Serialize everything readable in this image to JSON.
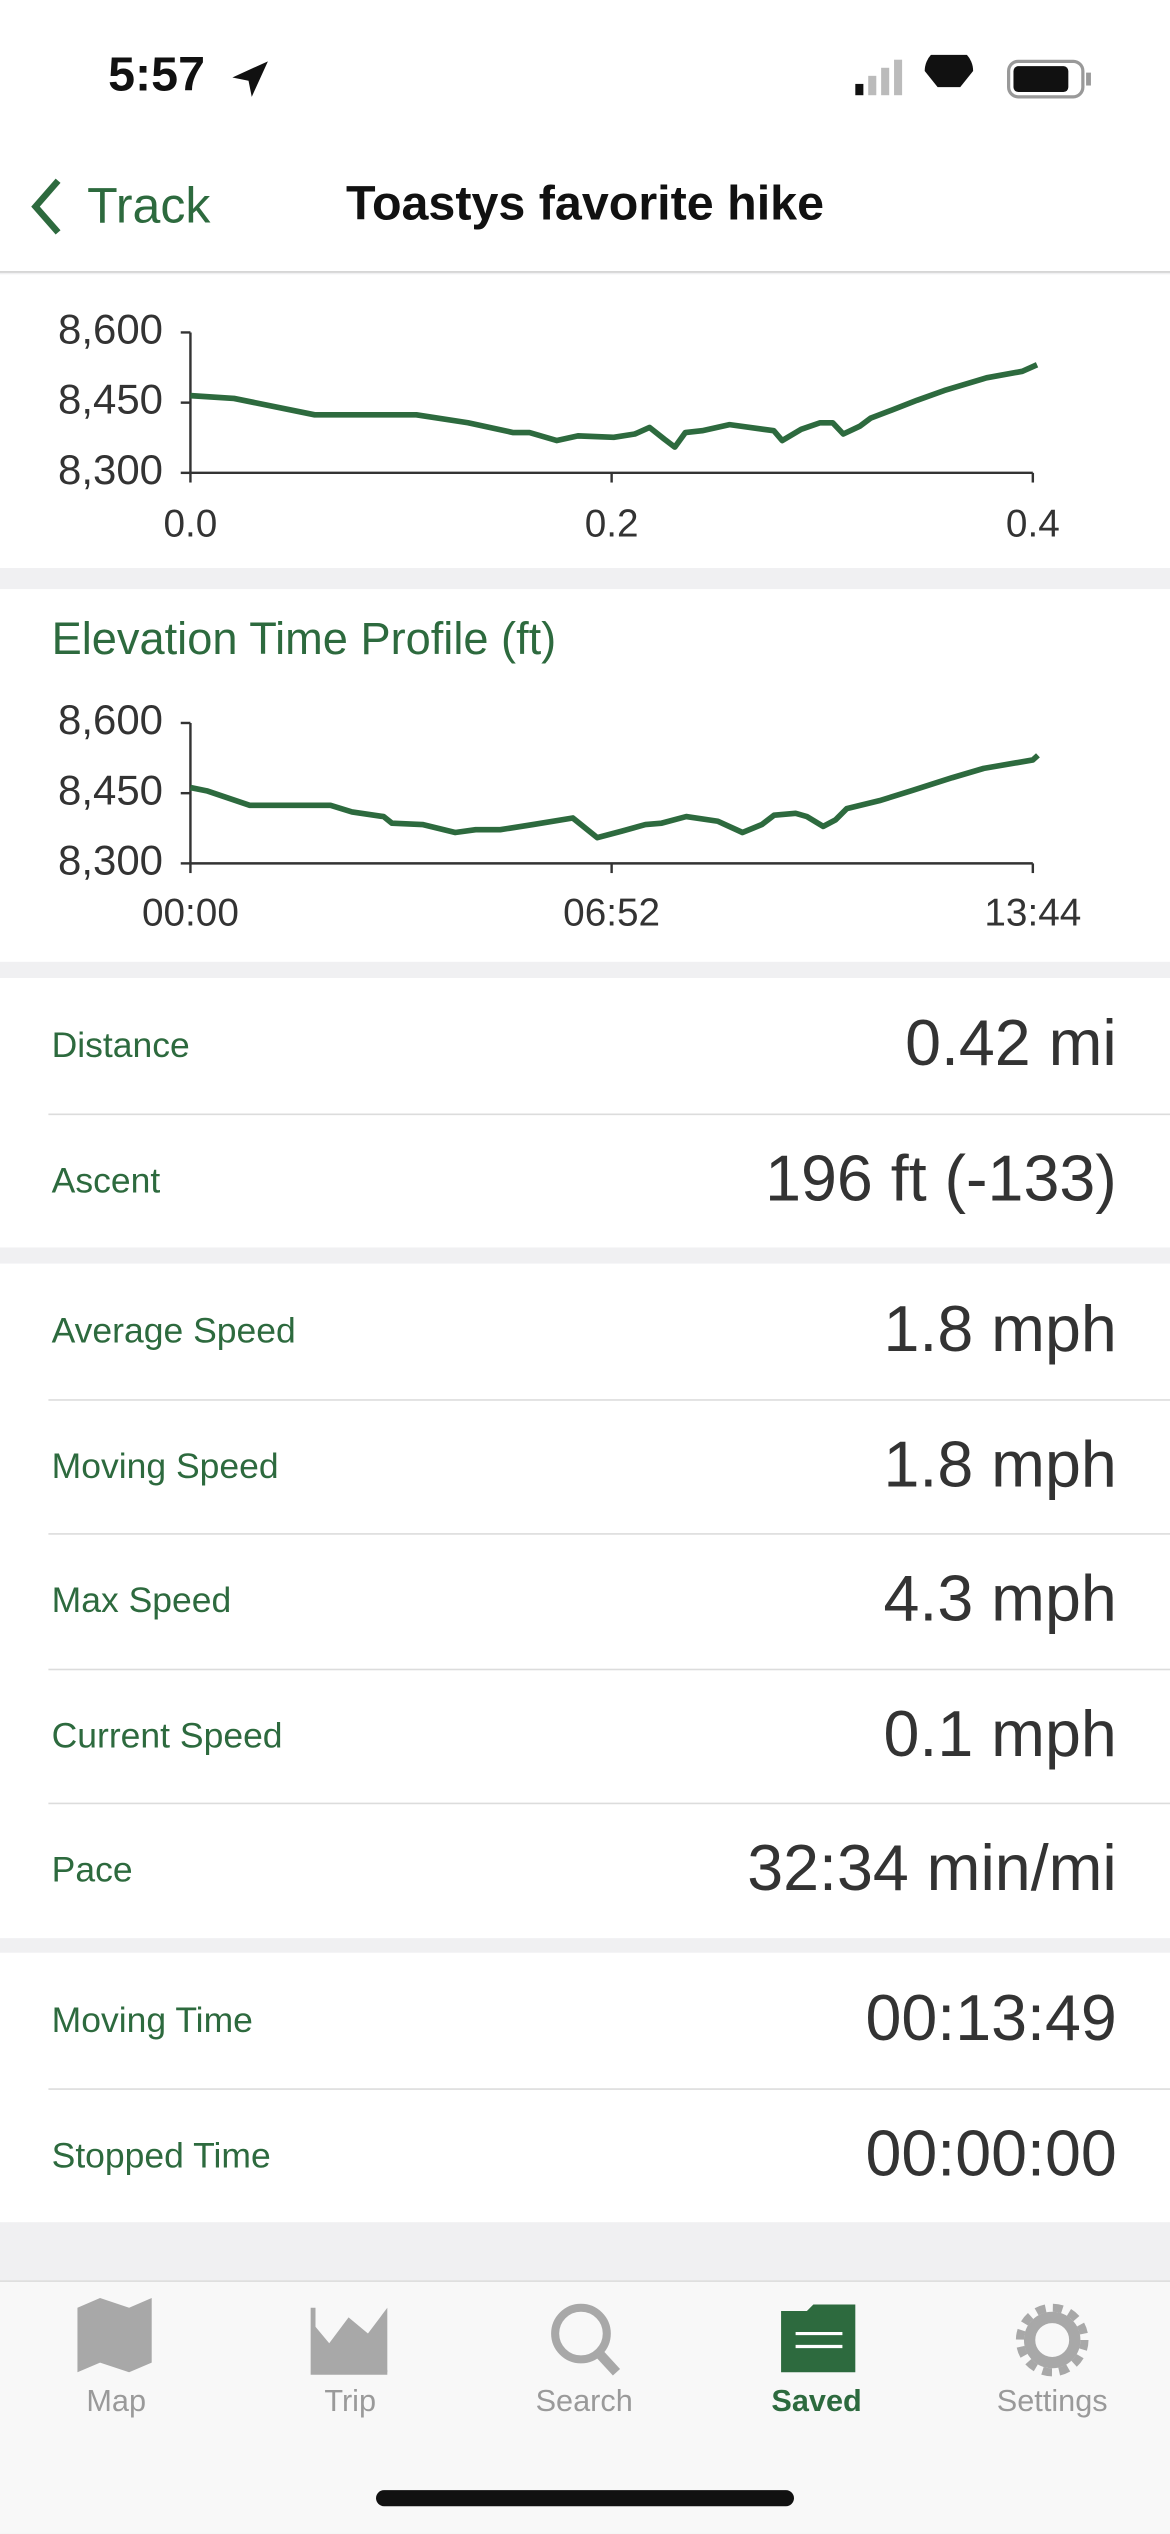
{
  "status_bar": {
    "time": "5:57"
  },
  "nav": {
    "back": "Track",
    "title": "Toastys favorite hike"
  },
  "chart_data": [
    {
      "type": "line",
      "color": "#2d6a3e",
      "x": [
        0,
        0.0207,
        0.059,
        0.1073,
        0.1318,
        0.1533,
        0.161,
        0.174,
        0.184,
        0.201,
        0.211,
        0.218,
        0.225,
        0.23,
        0.235,
        0.243,
        0.256,
        0.277,
        0.281,
        0.29,
        0.299,
        0.305,
        0.31,
        0.318,
        0.323,
        0.333,
        0.345,
        0.358,
        0.378,
        0.395,
        0.402
      ],
      "values": [
        8465,
        8459,
        8424,
        8424,
        8407,
        8386,
        8386,
        8369,
        8379,
        8376,
        8383,
        8397,
        8372,
        8355,
        8386,
        8390,
        8403,
        8390,
        8369,
        8393,
        8407,
        8407,
        8383,
        8400,
        8417,
        8434,
        8455,
        8476,
        8503,
        8517,
        8531
      ],
      "xlim": [
        0,
        0.4
      ],
      "xticks": [
        {
          "value": 0,
          "label": "0.0"
        },
        0.2,
        0.4
      ],
      "ylim": [
        8300,
        8600
      ],
      "yticks": [
        {
          "value": 8300,
          "label": "8,300"
        },
        {
          "value": 8450,
          "label": "8,450"
        },
        {
          "value": 8600,
          "label": "8,600"
        }
      ]
    },
    {
      "type": "line",
      "title": "Elevation Time Profile (ft)",
      "color": "#2d6a3e",
      "x": [
        0,
        16,
        58,
        137,
        158,
        189,
        197,
        227,
        259,
        279,
        303,
        335,
        374,
        398,
        422,
        445,
        461,
        485,
        516,
        540,
        559,
        571,
        592,
        603,
        619,
        631,
        642,
        674,
        705,
        745,
        776,
        824,
        829
      ],
      "values": [
        8462,
        8455,
        8424,
        8424,
        8410,
        8400,
        8386,
        8383,
        8366,
        8372,
        8372,
        8383,
        8397,
        8355,
        8369,
        8383,
        8386,
        8400,
        8390,
        8366,
        8383,
        8403,
        8407,
        8400,
        8379,
        8393,
        8417,
        8434,
        8455,
        8483,
        8503,
        8521,
        8531
      ],
      "xlim": [
        0,
        824
      ],
      "xticks": [
        {
          "value": 0,
          "label": "00:00"
        },
        {
          "value": 412,
          "label": "06:52"
        },
        {
          "value": 824,
          "label": "13:44"
        }
      ],
      "ylim": [
        8300,
        8600
      ],
      "yticks": [
        {
          "value": 8300,
          "label": "8,300"
        },
        {
          "value": 8450,
          "label": "8,450"
        },
        {
          "value": 8600,
          "label": "8,600"
        }
      ]
    }
  ],
  "stats": [
    [
      {
        "label": "Distance",
        "value": "0.42 mi"
      },
      {
        "label": "Ascent",
        "value": "196 ft (-133)"
      }
    ],
    [
      {
        "label": "Average Speed",
        "value": "1.8 mph"
      },
      {
        "label": "Moving Speed",
        "value": "1.8 mph"
      },
      {
        "label": "Max Speed",
        "value": "4.3 mph"
      },
      {
        "label": "Current Speed",
        "value": "0.1 mph"
      },
      {
        "label": "Pace",
        "value": "32:34 min/mi"
      }
    ],
    [
      {
        "label": "Moving Time",
        "value": "00:13:49"
      },
      {
        "label": "Stopped Time",
        "value": "00:00:00"
      }
    ]
  ],
  "tab_bar": {
    "items": [
      "Map",
      "Trip",
      "Search",
      "Saved",
      "Settings"
    ]
  }
}
